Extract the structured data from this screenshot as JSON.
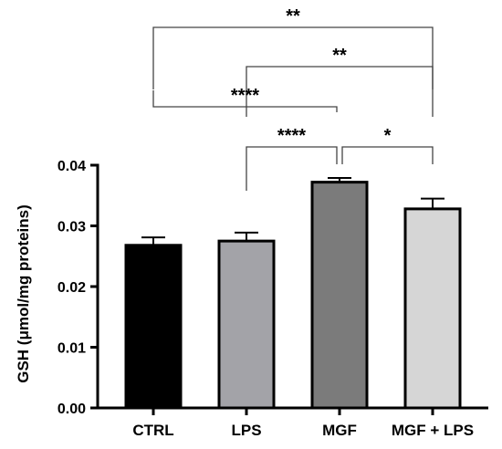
{
  "chart_data": {
    "type": "bar",
    "categories": [
      "CTRL",
      "LPS",
      "MGF",
      "MGF + LPS"
    ],
    "values": [
      0.0268,
      0.0275,
      0.0372,
      0.0328
    ],
    "errors": [
      0.0013,
      0.0014,
      0.0007,
      0.0017
    ],
    "colors": [
      "#000000",
      "#a3a3a8",
      "#7b7b7b",
      "#d6d6d6"
    ],
    "ylabel": "GSH (μmol/mg proteins)",
    "ylim": [
      0,
      0.04
    ],
    "yticks": [
      "0.00",
      "0.01",
      "0.02",
      "0.03",
      "0.04"
    ],
    "ytick_values": [
      0,
      0.01,
      0.02,
      0.03,
      0.04
    ],
    "grid": false,
    "significance": [
      {
        "from": "CTRL",
        "to": "MGF + LPS",
        "label": "**"
      },
      {
        "from": "LPS",
        "to": "MGF + LPS",
        "label": "**"
      },
      {
        "from": "CTRL",
        "to": "MGF",
        "label": "****"
      },
      {
        "from": "LPS",
        "to": "MGF",
        "label": "****"
      },
      {
        "from": "MGF",
        "to": "MGF + LPS",
        "label": "*"
      }
    ]
  }
}
